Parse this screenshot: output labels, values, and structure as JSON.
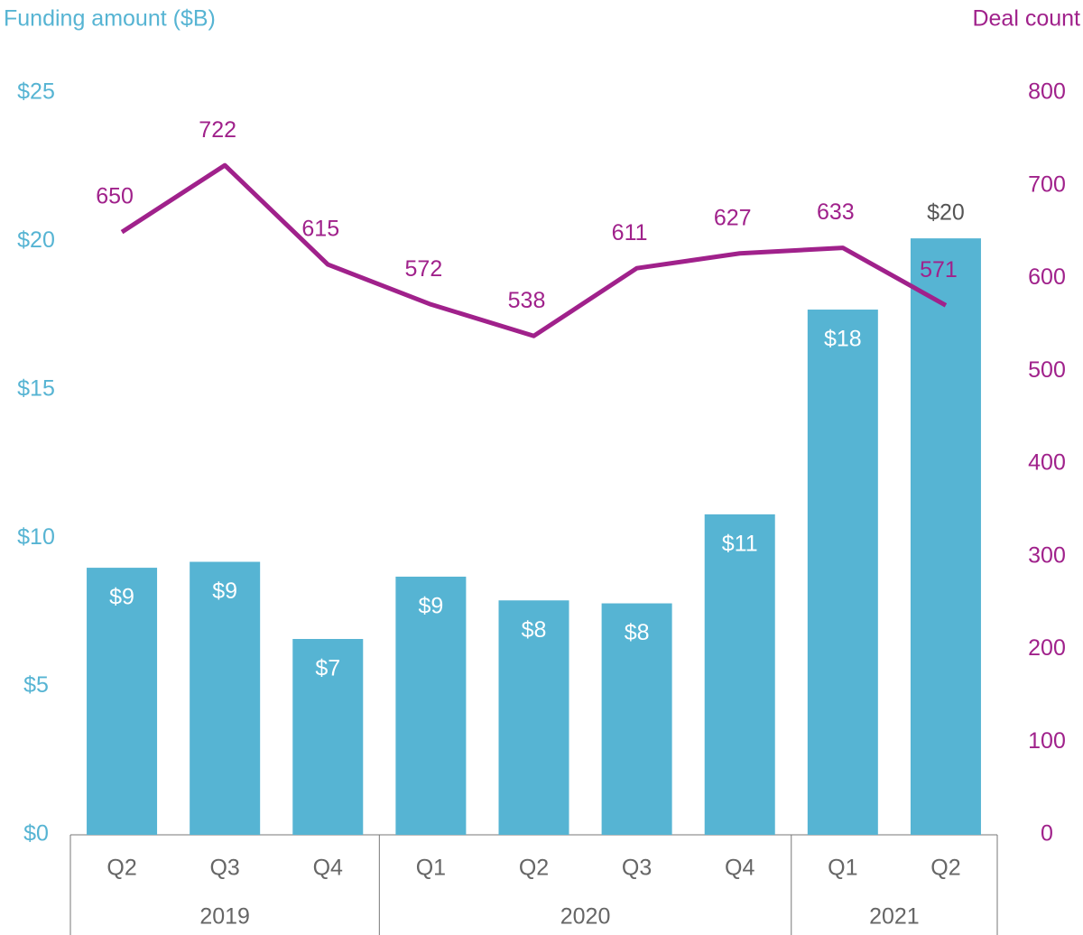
{
  "chart_data": {
    "type": "bar_line",
    "y_label": "Funding amount ($B)",
    "y2_label": "Deal count",
    "categories": [
      "Q2",
      "Q3",
      "Q4",
      "Q1",
      "Q2",
      "Q3",
      "Q4",
      "Q1",
      "Q2"
    ],
    "category_groups": [
      {
        "label": "2019",
        "size": 3
      },
      {
        "label": "2020",
        "size": 4
      },
      {
        "label": "2021",
        "size": 2
      }
    ],
    "series": [
      {
        "type": "bar",
        "color": "#56b4d3",
        "axis": "y",
        "values": [
          9.0,
          9.2,
          6.6,
          8.7,
          7.9,
          7.8,
          10.8,
          17.7,
          20.1
        ],
        "value_labels": [
          "$9",
          "$9",
          "$7",
          "$9",
          "$8",
          "$8",
          "$11",
          "$18",
          "$20"
        ]
      },
      {
        "type": "line",
        "color": "#a0218b",
        "axis": "y2",
        "values": [
          650,
          722,
          615,
          572,
          538,
          611,
          627,
          633,
          571
        ]
      }
    ],
    "ylim": [
      0,
      25
    ],
    "yticks": [
      {
        "value": 0,
        "label": "$0"
      },
      {
        "value": 5,
        "label": "$5"
      },
      {
        "value": 10,
        "label": "$10"
      },
      {
        "value": 15,
        "label": "$15"
      },
      {
        "value": 20,
        "label": "$20"
      },
      {
        "value": 25,
        "label": "$25"
      }
    ],
    "y2lim": [
      0,
      800
    ],
    "y2ticks": [
      0,
      100,
      200,
      300,
      400,
      500,
      600,
      700,
      800
    ],
    "grid": false
  }
}
